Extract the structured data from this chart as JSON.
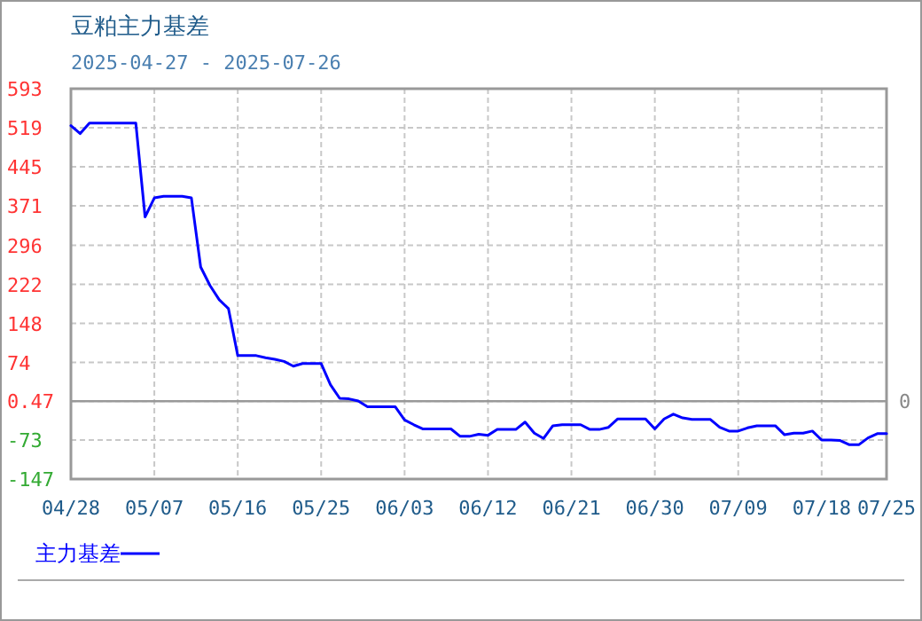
{
  "chart_data": {
    "type": "line",
    "title": "豆粕主力基差",
    "subtitle": "2025-04-27 - 2025-07-26",
    "x": [
      "2025-04-28",
      "2025-04-29",
      "2025-04-30",
      "2025-05-01",
      "2025-05-02",
      "2025-05-03",
      "2025-05-04",
      "2025-05-05",
      "2025-05-06",
      "2025-05-07",
      "2025-05-08",
      "2025-05-09",
      "2025-05-10",
      "2025-05-11",
      "2025-05-12",
      "2025-05-13",
      "2025-05-14",
      "2025-05-15",
      "2025-05-16",
      "2025-05-17",
      "2025-05-18",
      "2025-05-19",
      "2025-05-20",
      "2025-05-21",
      "2025-05-22",
      "2025-05-23",
      "2025-05-24",
      "2025-05-25",
      "2025-05-26",
      "2025-05-27",
      "2025-05-28",
      "2025-05-29",
      "2025-05-30",
      "2025-05-31",
      "2025-06-01",
      "2025-06-02",
      "2025-06-03",
      "2025-06-04",
      "2025-06-05",
      "2025-06-06",
      "2025-06-07",
      "2025-06-08",
      "2025-06-09",
      "2025-06-10",
      "2025-06-11",
      "2025-06-12",
      "2025-06-13",
      "2025-06-14",
      "2025-06-15",
      "2025-06-16",
      "2025-06-17",
      "2025-06-18",
      "2025-06-19",
      "2025-06-20",
      "2025-06-21",
      "2025-06-22",
      "2025-06-23",
      "2025-06-24",
      "2025-06-25",
      "2025-06-26",
      "2025-06-27",
      "2025-06-28",
      "2025-06-29",
      "2025-06-30",
      "2025-07-01",
      "2025-07-02",
      "2025-07-03",
      "2025-07-04",
      "2025-07-05",
      "2025-07-06",
      "2025-07-07",
      "2025-07-08",
      "2025-07-09",
      "2025-07-10",
      "2025-07-11",
      "2025-07-12",
      "2025-07-13",
      "2025-07-14",
      "2025-07-15",
      "2025-07-16",
      "2025-07-17",
      "2025-07-18",
      "2025-07-19",
      "2025-07-20",
      "2025-07-21",
      "2025-07-22",
      "2025-07-23",
      "2025-07-24",
      "2025-07-25"
    ],
    "series": [
      {
        "name": "主力基差",
        "color": "#0000ff",
        "values": [
          523,
          508,
          528,
          528,
          528,
          528,
          528,
          528,
          350,
          386,
          389,
          389,
          389,
          386,
          255,
          220,
          193,
          176,
          87,
          87,
          87,
          83,
          80,
          76,
          67,
          72,
          72,
          72,
          32,
          6,
          5,
          1,
          -10,
          -10,
          -10,
          -10,
          -35,
          -44,
          -52,
          -52,
          -52,
          -52,
          -66,
          -66,
          -62,
          -64,
          -53,
          -53,
          -53,
          -39,
          -60,
          -70,
          -46,
          -44,
          -44,
          -44,
          -53,
          -53,
          -49,
          -33,
          -33,
          -33,
          -33,
          -52,
          -33,
          -24,
          -31,
          -34,
          -34,
          -34,
          -49,
          -56,
          -56,
          -50,
          -46,
          -46,
          -46,
          -63,
          -60,
          -60,
          -56,
          -73,
          -73,
          -74,
          -82,
          -82,
          -69,
          -61,
          -61
        ]
      }
    ],
    "xlim": [
      "2025-04-28",
      "2025-07-25"
    ],
    "xticks": [
      {
        "value": "2025-04-28",
        "label": "04/28"
      },
      {
        "value": "2025-05-07",
        "label": "05/07"
      },
      {
        "value": "2025-05-16",
        "label": "05/16"
      },
      {
        "value": "2025-05-25",
        "label": "05/25"
      },
      {
        "value": "2025-06-03",
        "label": "06/03"
      },
      {
        "value": "2025-06-12",
        "label": "06/12"
      },
      {
        "value": "2025-06-21",
        "label": "06/21"
      },
      {
        "value": "2025-06-30",
        "label": "06/30"
      },
      {
        "value": "2025-07-09",
        "label": "07/09"
      },
      {
        "value": "2025-07-18",
        "label": "07/18"
      },
      {
        "value": "2025-07-25",
        "label": "07/25"
      }
    ],
    "ylim": [
      -147,
      593
    ],
    "yticks": [
      593,
      519,
      445,
      371,
      296,
      222,
      148,
      74,
      0.47,
      -73,
      -147
    ],
    "annotations": [
      "0"
    ],
    "ref_lines": [
      {
        "axis": "y",
        "value": 0.47,
        "color": "#999999"
      }
    ],
    "grid": true,
    "legend": "bottom",
    "marker": "none",
    "line_style": "solid"
  }
}
